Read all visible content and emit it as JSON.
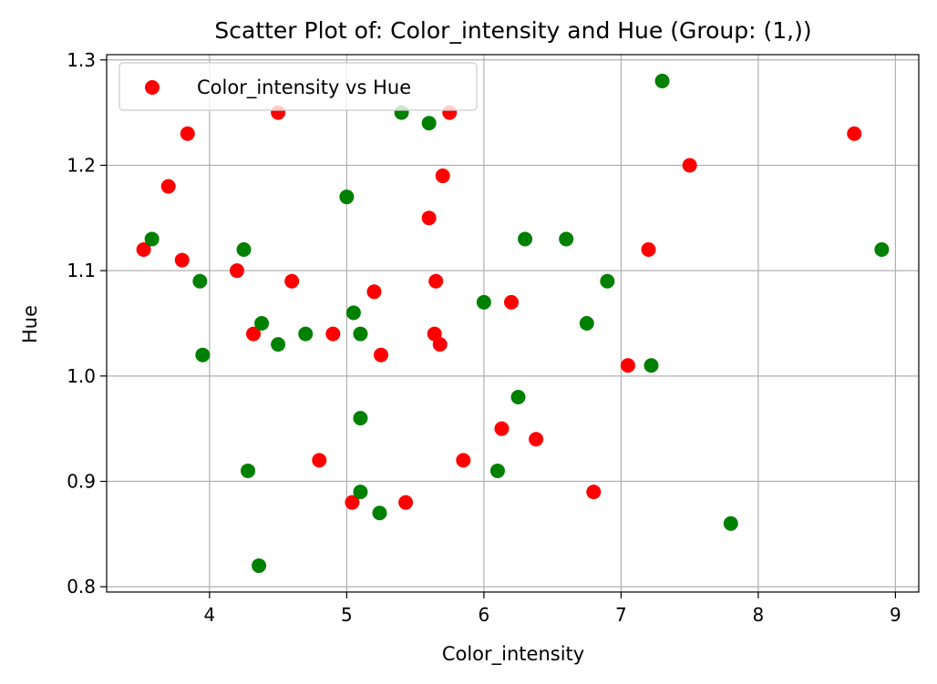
{
  "chart_data": {
    "type": "scatter",
    "title": "Scatter Plot of: Color_intensity and Hue (Group: (1,))",
    "xlabel": "Color_intensity",
    "ylabel": "Hue",
    "xlim": [
      3.25,
      9.17
    ],
    "ylim": [
      0.795,
      1.305
    ],
    "xticks": [
      4,
      5,
      6,
      7,
      8,
      9
    ],
    "yticks": [
      0.8,
      0.9,
      1.0,
      1.1,
      1.2,
      1.3
    ],
    "xtick_labels": [
      "4",
      "5",
      "6",
      "7",
      "8",
      "9"
    ],
    "ytick_labels": [
      "0.8",
      "0.9",
      "1.0",
      "1.1",
      "1.2",
      "1.3"
    ],
    "grid": true,
    "legend": {
      "position": "top-left",
      "entries": [
        "Color_intensity vs Hue"
      ]
    },
    "series": [
      {
        "name": "Color_intensity vs Hue",
        "color": "#ff0000",
        "points": [
          [
            3.52,
            1.12
          ],
          [
            3.7,
            1.18
          ],
          [
            3.8,
            1.11
          ],
          [
            3.84,
            1.23
          ],
          [
            4.2,
            1.1
          ],
          [
            4.32,
            1.04
          ],
          [
            4.5,
            1.25
          ],
          [
            4.6,
            1.09
          ],
          [
            4.8,
            0.92
          ],
          [
            4.9,
            1.04
          ],
          [
            5.04,
            0.88
          ],
          [
            5.2,
            1.08
          ],
          [
            5.25,
            1.02
          ],
          [
            5.43,
            0.88
          ],
          [
            5.6,
            1.15
          ],
          [
            5.64,
            1.04
          ],
          [
            5.65,
            1.09
          ],
          [
            5.68,
            1.03
          ],
          [
            5.7,
            1.19
          ],
          [
            5.75,
            1.25
          ],
          [
            5.85,
            0.92
          ],
          [
            6.13,
            0.95
          ],
          [
            6.2,
            1.07
          ],
          [
            6.38,
            0.94
          ],
          [
            6.8,
            0.89
          ],
          [
            7.05,
            1.01
          ],
          [
            7.2,
            1.12
          ],
          [
            7.5,
            1.2
          ],
          [
            8.7,
            1.23
          ]
        ]
      },
      {
        "color": "#008000",
        "points": [
          [
            3.58,
            1.13
          ],
          [
            3.93,
            1.09
          ],
          [
            3.95,
            1.02
          ],
          [
            4.25,
            1.12
          ],
          [
            4.28,
            0.91
          ],
          [
            4.36,
            0.82
          ],
          [
            4.38,
            1.05
          ],
          [
            4.5,
            1.03
          ],
          [
            4.7,
            1.04
          ],
          [
            5.0,
            1.17
          ],
          [
            5.05,
            1.06
          ],
          [
            5.1,
            1.04
          ],
          [
            5.1,
            0.96
          ],
          [
            5.1,
            0.89
          ],
          [
            5.24,
            0.87
          ],
          [
            5.4,
            1.25
          ],
          [
            5.6,
            1.24
          ],
          [
            6.0,
            1.07
          ],
          [
            6.1,
            0.91
          ],
          [
            6.25,
            0.98
          ],
          [
            6.3,
            1.13
          ],
          [
            6.6,
            1.13
          ],
          [
            6.75,
            1.05
          ],
          [
            6.9,
            1.09
          ],
          [
            7.22,
            1.01
          ],
          [
            7.3,
            1.28
          ],
          [
            7.8,
            0.86
          ],
          [
            8.9,
            1.12
          ]
        ]
      }
    ]
  }
}
